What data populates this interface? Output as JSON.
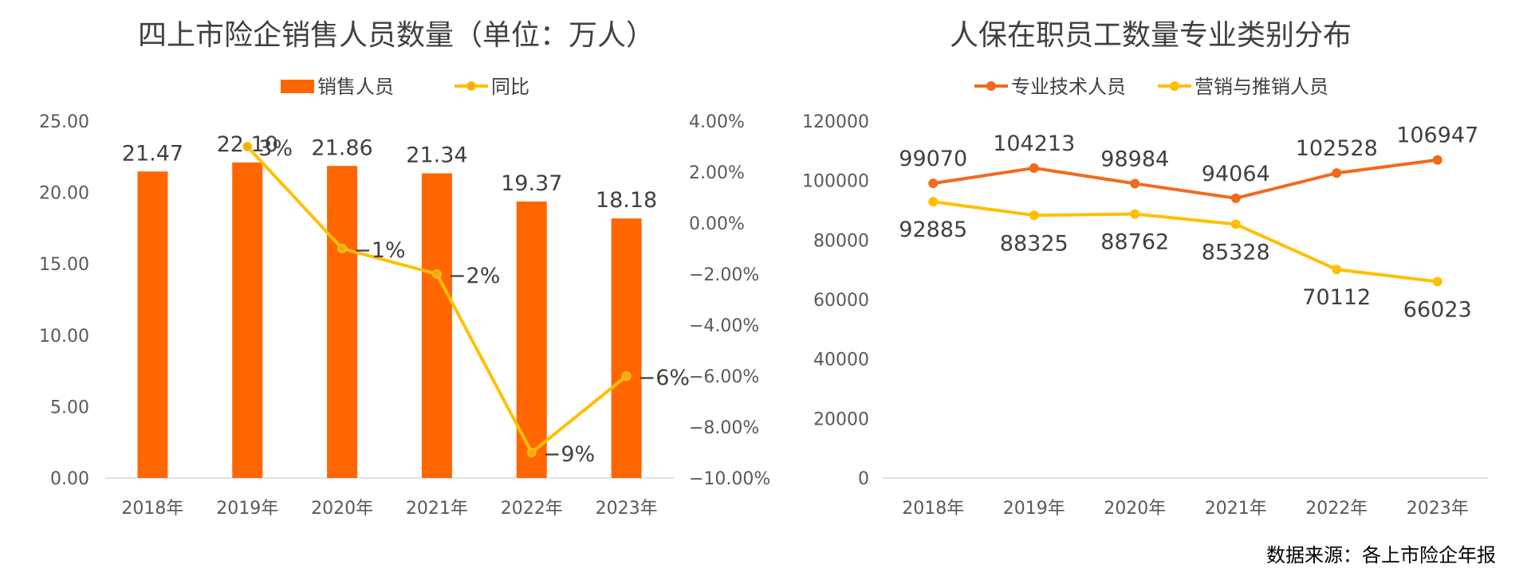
{
  "colors": {
    "orange": "#ff6600",
    "yellow": "#ffc000",
    "line1": "#f26a1b",
    "line2": "#ffbf00",
    "axis": "#d9d9d9",
    "text": "#404040"
  },
  "source_note": "数据来源：各上市险企年报",
  "chart_data": [
    {
      "type": "bar",
      "title": "四上市险企销售人员数量（单位：万人）",
      "categories": [
        "2018年",
        "2019年",
        "2020年",
        "2021年",
        "2022年",
        "2023年"
      ],
      "series": [
        {
          "name": "销售人员",
          "type": "bar",
          "axis": "left",
          "values": [
            21.47,
            22.1,
            21.86,
            21.34,
            19.37,
            18.18
          ],
          "labels": [
            "21.47",
            "22.10",
            "21.86",
            "21.34",
            "19.37",
            "18.18"
          ]
        },
        {
          "name": "同比",
          "type": "line",
          "axis": "right",
          "values": [
            null,
            0.03,
            -0.01,
            -0.02,
            -0.09,
            -0.06
          ],
          "labels": [
            "",
            "3%",
            "−1%",
            "−2%",
            "−9%",
            "−6%"
          ]
        }
      ],
      "left_axis": {
        "ylim": [
          0,
          25
        ],
        "ticks": [
          "0.00",
          "5.00",
          "10.00",
          "15.00",
          "20.00",
          "25.00"
        ]
      },
      "right_axis": {
        "ylim": [
          -0.1,
          0.04
        ],
        "ticks": [
          "−10.00%",
          "−8.00%",
          "−6.00%",
          "−4.00%",
          "−2.00%",
          "0.00%",
          "2.00%",
          "4.00%"
        ]
      },
      "legend": [
        "销售人员",
        "同比"
      ],
      "legend_position": "top",
      "grid": false
    },
    {
      "type": "line",
      "title": "人保在职员工数量专业类别分布",
      "categories": [
        "2018年",
        "2019年",
        "2020年",
        "2021年",
        "2022年",
        "2023年"
      ],
      "series": [
        {
          "name": "专业技术人员",
          "values": [
            99070,
            104213,
            98984,
            94064,
            102528,
            106947
          ]
        },
        {
          "name": "营销与推销人员",
          "values": [
            92885,
            88325,
            88762,
            85328,
            70112,
            66023
          ]
        }
      ],
      "ylim": [
        0,
        120000
      ],
      "ticks": [
        "0",
        "20000",
        "40000",
        "60000",
        "80000",
        "100000",
        "120000"
      ],
      "legend": [
        "专业技术人员",
        "营销与推销人员"
      ],
      "legend_position": "top",
      "grid": false
    }
  ]
}
